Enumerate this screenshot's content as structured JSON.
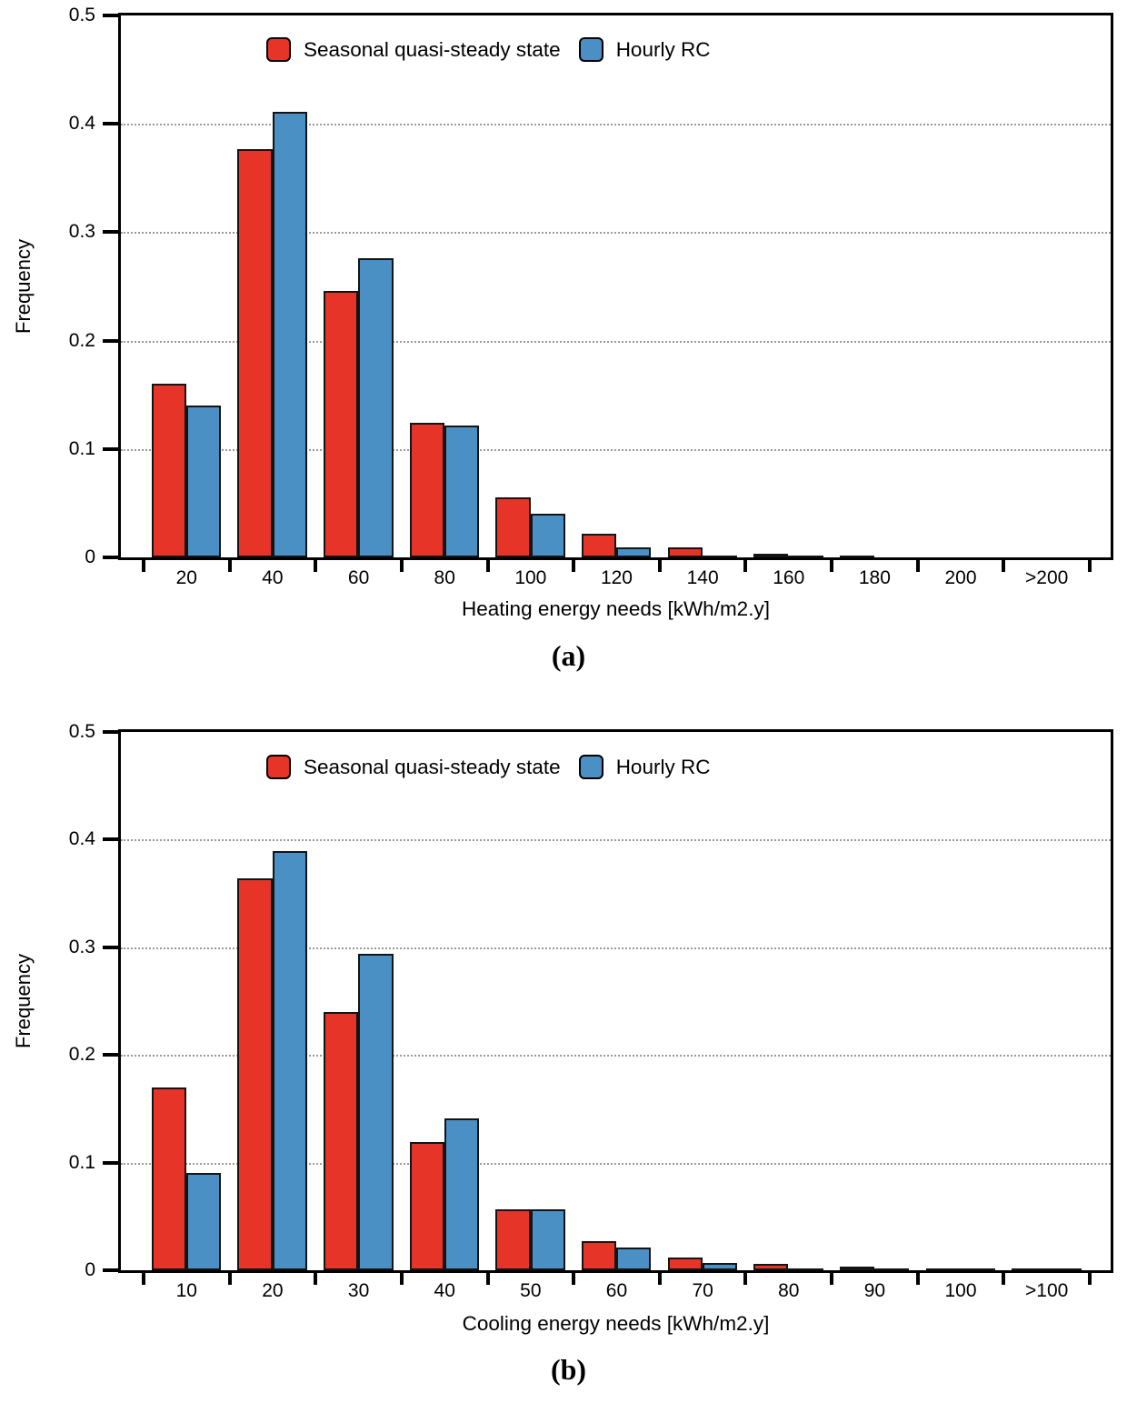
{
  "figure": {
    "background": "#ffffff",
    "axis_color": "#000000",
    "bar_outline_color": "#141414",
    "gridline_color": "#9a9a9a"
  },
  "legend": {
    "items": [
      {
        "label": "Seasonal quasi-steady state",
        "color": "#e73428"
      },
      {
        "label": "Hourly RC",
        "color": "#4a90c5"
      }
    ]
  },
  "chart_data": [
    {
      "type": "bar",
      "panel": "a",
      "caption": "(a)",
      "title": "",
      "xlabel": "Heating energy needs [kWh/m2.y]",
      "ylabel": "Frequency",
      "ylim": [
        0,
        0.5
      ],
      "ytick_step": 0.1,
      "ytick_labels": [
        "0",
        "0.1",
        "0.2",
        "0.3",
        "0.4",
        "0.5"
      ],
      "grid": "horizontal dotted at 0.1-0.4",
      "legend_position": "top-inside-left-of-center",
      "categories": [
        "20",
        "40",
        "60",
        "80",
        "100",
        "120",
        "140",
        "160",
        "180",
        "200",
        ">200"
      ],
      "series": [
        {
          "name": "Seasonal quasi-steady state",
          "color": "#e73428",
          "values": [
            0.16,
            0.377,
            0.246,
            0.124,
            0.055,
            0.022,
            0.009,
            0.003,
            0.001,
            0,
            0
          ]
        },
        {
          "name": "Hourly RC",
          "color": "#4a90c5",
          "values": [
            0.14,
            0.411,
            0.276,
            0.122,
            0.04,
            0.009,
            0.002,
            0.001,
            0,
            0,
            0
          ]
        }
      ]
    },
    {
      "type": "bar",
      "panel": "b",
      "caption": "(b)",
      "title": "",
      "xlabel": "Cooling energy needs [kWh/m2.y]",
      "ylabel": "Frequency",
      "ylim": [
        0,
        0.5
      ],
      "ytick_step": 0.1,
      "ytick_labels": [
        "0",
        "0.1",
        "0.2",
        "0.3",
        "0.4",
        "0.5"
      ],
      "grid": "horizontal dotted at 0.1-0.4",
      "legend_position": "top-inside-left-of-center",
      "categories": [
        "10",
        "20",
        "30",
        "40",
        "50",
        "60",
        "70",
        "80",
        "90",
        "100",
        ">100"
      ],
      "series": [
        {
          "name": "Seasonal quasi-steady state",
          "color": "#e73428",
          "values": [
            0.17,
            0.364,
            0.24,
            0.119,
            0.057,
            0.027,
            0.012,
            0.006,
            0.003,
            0.002,
            0.002
          ]
        },
        {
          "name": "Hourly RC",
          "color": "#4a90c5",
          "values": [
            0.09,
            0.389,
            0.294,
            0.141,
            0.057,
            0.021,
            0.007,
            0.002,
            0.001,
            0.001,
            0.001
          ]
        }
      ]
    }
  ]
}
